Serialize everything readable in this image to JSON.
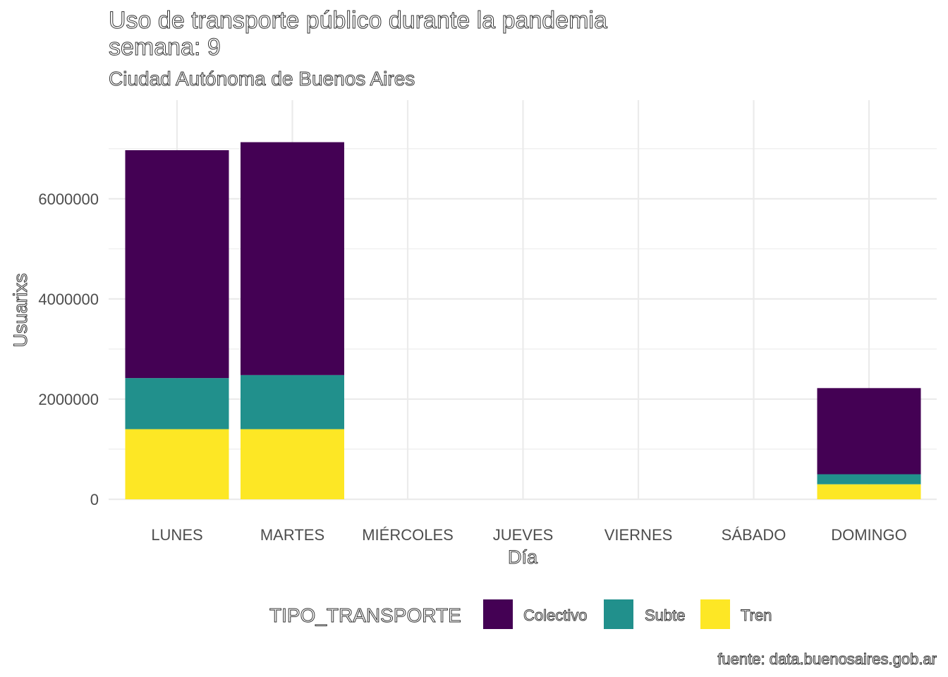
{
  "chart_data": {
    "type": "bar",
    "stacked": true,
    "title": "Uso de transporte público durante la pandemia",
    "title_line2": "semana: 9",
    "subtitle": "Ciudad Autónoma de Buenos Aires",
    "caption": "fuente: data.buenosaires.gob.ar",
    "xlabel": "Día",
    "ylabel": "Usuarixs",
    "categories": [
      "LUNES",
      "MARTES",
      "MIÉRCOLES",
      "JUEVES",
      "VIERNES",
      "SÁBADO",
      "DOMINGO"
    ],
    "series": [
      {
        "name": "Tren",
        "color": "#FDE725",
        "values": [
          1400000,
          1400000,
          0,
          0,
          0,
          0,
          300000
        ]
      },
      {
        "name": "Subte",
        "color": "#21908C",
        "values": [
          1020000,
          1080000,
          0,
          0,
          0,
          0,
          200000
        ]
      },
      {
        "name": "Colectivo",
        "color": "#440154",
        "values": [
          4550000,
          4650000,
          0,
          0,
          0,
          0,
          1720000
        ]
      }
    ],
    "stack_order_bottom_to_top": [
      "Tren",
      "Subte",
      "Colectivo"
    ],
    "ylim": [
      0,
      7550000
    ],
    "yticks": [
      0,
      2000000,
      4000000,
      6000000
    ],
    "ytick_labels": [
      "0",
      "2000000",
      "4000000",
      "6000000"
    ],
    "grid": true,
    "legend": {
      "title": "TIPO_TRANSPORTE",
      "position": "bottom",
      "entries": [
        "Colectivo",
        "Subte",
        "Tren"
      ]
    }
  }
}
